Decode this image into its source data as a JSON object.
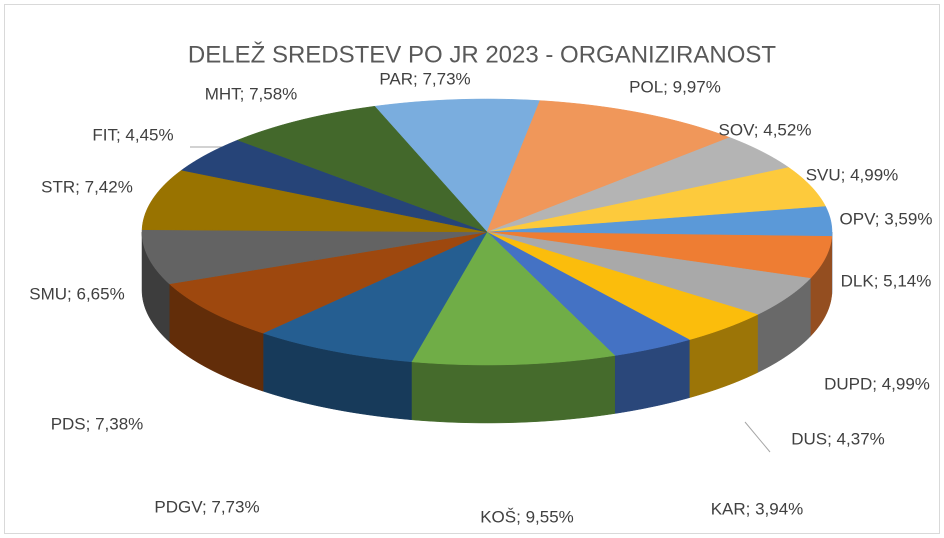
{
  "chart_data": {
    "type": "pie3d",
    "title": "DELEŽ SREDSTEV PO JR 2023 - ORGANIZIRANOST",
    "values": [
      7.73,
      9.97,
      4.52,
      4.99,
      3.59,
      5.14,
      4.99,
      4.37,
      3.94,
      9.55,
      7.73,
      7.38,
      6.65,
      7.42,
      4.45,
      7.58
    ],
    "value_labels": [
      "PAR; 7,73%",
      "POL; 9,97%",
      "SOV; 4,52%",
      "SVU; 4,99%",
      "OPV; 3,59%",
      "DLK; 5,14%",
      "DUPD; 4,99%",
      "DUS; 4,37%",
      "KAR; 3,94%",
      "KOŠ; 9,55%",
      "PDGV; 7,73%",
      "PDS; 7,38%",
      "SMU; 6,65%",
      "STR; 7,42%",
      "FIT; 4,45%",
      "MHT; 7,58%"
    ],
    "colors": [
      "#7aadde",
      "#f0975a",
      "#b4b4b4",
      "#fdca3c",
      "#5b99d8",
      "#ee7d33",
      "#a9a9a9",
      "#fbbd0c",
      "#4472c4",
      "#70ad47",
      "#255e91",
      "#9e480e",
      "#636363",
      "#997300",
      "#264478",
      "#43682b"
    ]
  }
}
